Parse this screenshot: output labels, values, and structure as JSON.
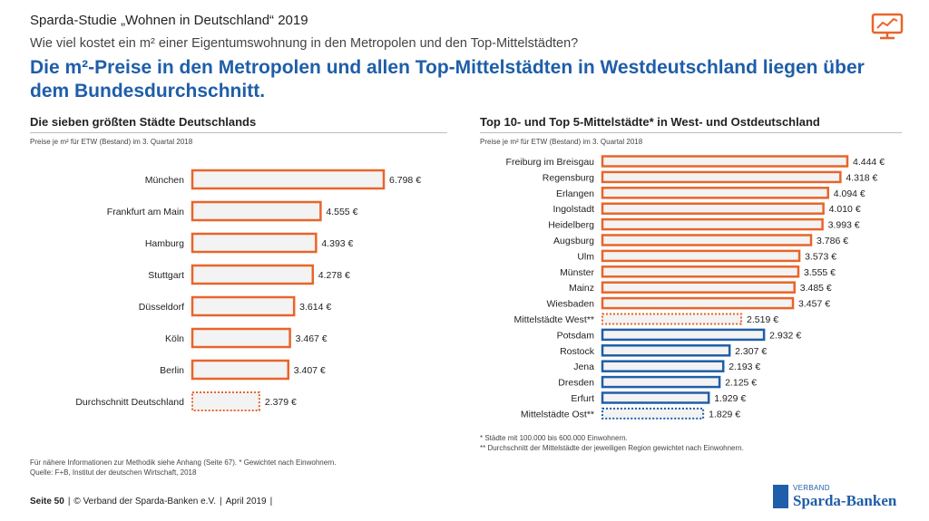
{
  "header": {
    "title": "Sparda-Studie „Wohnen in Deutschland“ 2019",
    "question": "Wie viel kostet ein m² einer Eigentumswohnung in den Metropolen und den Top-Mittelstädten?",
    "headline": "Die m²-Preise in den Metropolen und allen Top-Mittelstädten in Westdeutschland liegen über dem Bundesdurchschnitt."
  },
  "icons": {
    "top_right": "chart-presentation-icon"
  },
  "colors": {
    "orange": "#e8652a",
    "blue": "#1f5ea8",
    "bar_fill": "#f3f3f3"
  },
  "chart_data": [
    {
      "type": "bar",
      "orientation": "horizontal",
      "title": "Die sieben größten Städte Deutschlands",
      "subtitle": "Preise je m² für ETW (Bestand) im 3. Quartal 2018",
      "unit": "€",
      "categories": [
        "München",
        "Frankfurt am Main",
        "Hamburg",
        "Stuttgart",
        "Düsseldorf",
        "Köln",
        "Berlin",
        "Durchschnitt Deutschland"
      ],
      "values": [
        6798,
        4555,
        4393,
        4278,
        3614,
        3467,
        3407,
        2379
      ],
      "labels": [
        "6.798 €",
        "4.555 €",
        "4.393 €",
        "4.278 €",
        "3.614 €",
        "3.467 €",
        "3.407 €",
        "2.379 €"
      ],
      "styles": [
        "orange",
        "orange",
        "orange",
        "orange",
        "orange",
        "orange",
        "orange",
        "orange-dotted"
      ]
    },
    {
      "type": "bar",
      "orientation": "horizontal",
      "title": "Top 10- und Top 5-Mittelstädte* in West- und Ostdeutschland",
      "subtitle": "Preise je m² für ETW (Bestand) im 3. Quartal 2018",
      "unit": "€",
      "categories": [
        "Freiburg im Breisgau",
        "Regensburg",
        "Erlangen",
        "Ingolstadt",
        "Heidelberg",
        "Augsburg",
        "Ulm",
        "Münster",
        "Mainz",
        "Wiesbaden",
        "Mittelstädte West**",
        "Potsdam",
        "Rostock",
        "Jena",
        "Dresden",
        "Erfurt",
        "Mittelstädte Ost**"
      ],
      "values": [
        4444,
        4318,
        4094,
        4010,
        3993,
        3786,
        3573,
        3555,
        3485,
        3457,
        2519,
        2932,
        2307,
        2193,
        2125,
        1929,
        1829
      ],
      "labels": [
        "4.444 €",
        "4.318 €",
        "4.094 €",
        "4.010 €",
        "3.993 €",
        "3.786 €",
        "3.573 €",
        "3.555 €",
        "3.485 €",
        "3.457 €",
        "2.519 €",
        "2.932 €",
        "2.307 €",
        "2.193 €",
        "2.125 €",
        "1.929 €",
        "1.829 €"
      ],
      "styles": [
        "orange",
        "orange",
        "orange",
        "orange",
        "orange",
        "orange",
        "orange",
        "orange",
        "orange",
        "orange",
        "orange-dotted",
        "blue",
        "blue",
        "blue",
        "blue",
        "blue",
        "blue-dotted"
      ]
    }
  ],
  "footnotes_right": [
    "* Städte mit 100.000 bis 600.000 Einwohnern.",
    "** Durchschnitt der Mittelstädte der jeweiligen Region gewichtet nach Einwohnern."
  ],
  "footnotes_left": [
    "Für nähere Informationen zur Methodik siehe Anhang (Seite 67). * Gewichtet nach Einwohnern.",
    "Quelle: F+B, Institut der deutschen Wirtschaft, 2018"
  ],
  "footer": {
    "page": "Seite 50",
    "org": "© Verband der Sparda-Banken e.V.",
    "date": "April 2019"
  },
  "brand": {
    "small": "VERBAND",
    "big": "Sparda-Banken"
  }
}
